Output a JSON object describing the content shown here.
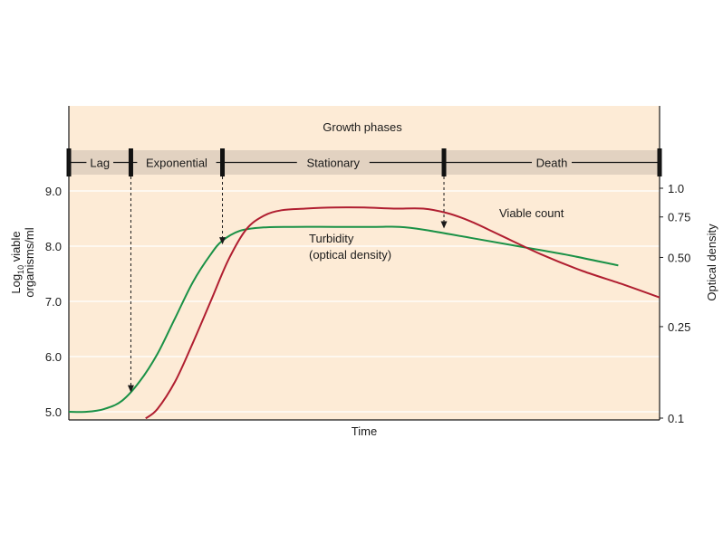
{
  "chart_data": {
    "type": "line",
    "title": "Growth phases",
    "xlabel": "Time",
    "ylabel_left_line1": "Log10 viable",
    "ylabel_left_base": "Log",
    "ylabel_left_sub": "10",
    "ylabel_left_rest": " viable",
    "ylabel_left_line2": "organisms/ml",
    "ylabel_right": "Optical density",
    "y_left_ticks": [
      "9.0",
      "8.0",
      "7.0",
      "6.0",
      "5.0"
    ],
    "y_left_range": [
      4.88,
      9.0
    ],
    "y_right_ticks": [
      "1.0",
      "0.75",
      "0.50",
      "0.25",
      "0.1"
    ],
    "y_right_values": [
      1.0,
      0.75,
      0.5,
      0.25,
      0.1
    ],
    "y_right_scale": "log",
    "grid": true,
    "phases": [
      {
        "label": "Lag",
        "start": 0.0,
        "end": 0.105
      },
      {
        "label": "Exponential",
        "start": 0.105,
        "end": 0.26
      },
      {
        "label": "Stationary",
        "start": 0.26,
        "end": 0.635
      },
      {
        "label": "Death",
        "start": 0.635,
        "end": 1.0
      }
    ],
    "series": [
      {
        "name": "Turbidity",
        "name_line2": "(optical density)",
        "color": "#1a9146",
        "axis": "left",
        "x": [
          0.0,
          0.03,
          0.06,
          0.09,
          0.12,
          0.15,
          0.18,
          0.21,
          0.24,
          0.26,
          0.29,
          0.33,
          0.38,
          0.45,
          0.52,
          0.56,
          0.6,
          0.68,
          0.76,
          0.84,
          0.93
        ],
        "y": [
          5.0,
          5.0,
          5.05,
          5.2,
          5.55,
          6.05,
          6.7,
          7.35,
          7.85,
          8.1,
          8.28,
          8.34,
          8.35,
          8.35,
          8.35,
          8.35,
          8.3,
          8.15,
          8.0,
          7.85,
          7.65
        ]
      },
      {
        "name": "Viable count",
        "color": "#b01e30",
        "axis": "left",
        "x": [
          0.13,
          0.15,
          0.18,
          0.21,
          0.24,
          0.27,
          0.3,
          0.33,
          0.36,
          0.4,
          0.45,
          0.5,
          0.55,
          0.6,
          0.64,
          0.68,
          0.73,
          0.8,
          0.87,
          0.94,
          1.0
        ],
        "y": [
          4.88,
          5.05,
          5.55,
          6.25,
          7.0,
          7.75,
          8.3,
          8.55,
          8.65,
          8.68,
          8.7,
          8.7,
          8.68,
          8.68,
          8.6,
          8.45,
          8.2,
          7.85,
          7.55,
          7.3,
          7.07
        ]
      }
    ],
    "annotations": [
      {
        "text": "Viable count",
        "target": "viable-count"
      },
      {
        "text": "Turbidity",
        "target": "turbidity-line1"
      },
      {
        "text": "(optical density)",
        "target": "turbidity-line2"
      }
    ],
    "transition_arrows": [
      {
        "x": 0.105,
        "to_y": 5.35
      },
      {
        "x": 0.26,
        "to_y": 8.03
      },
      {
        "x": 0.635,
        "to_y": 8.32
      }
    ]
  },
  "colors": {
    "background": "#fdebd6",
    "phase_band": "#e2d2c1",
    "turbidity": "#1a9146",
    "viable": "#b01e30",
    "grid": "#ffffff"
  }
}
